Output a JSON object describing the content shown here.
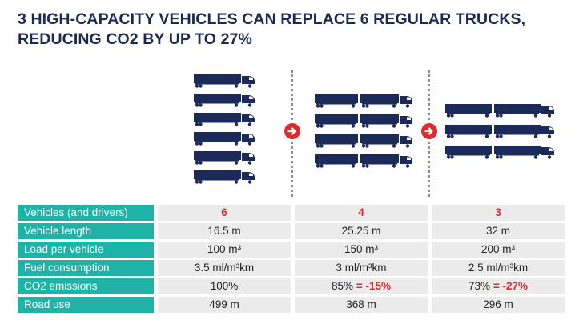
{
  "title": {
    "line1": "3 HIGH-CAPACITY VEHICLES CAN REPLACE 6 REGULAR TRUCKS,",
    "line2": "REDUCING CO2 BY UP TO 27%"
  },
  "colors": {
    "title": "#1b2a55",
    "truck_body": "#1c2a59",
    "label_background": "#1eb3a6",
    "value_background": "#ebebeb",
    "highlight_red": "#e0282f"
  },
  "illustration": {
    "groups": [
      {
        "truck_type": "regular-truck",
        "truck_count": 6
      },
      {
        "truck_type": "long-truck",
        "truck_count": 4
      },
      {
        "truck_type": "high-capacity-truck",
        "truck_count": 3
      }
    ],
    "arrow_icon": "arrow-right-icon"
  },
  "table": {
    "rows": [
      {
        "label": "Vehicles (and drivers)",
        "values": [
          {
            "main": "6",
            "delta": ""
          },
          {
            "main": "4",
            "delta": ""
          },
          {
            "main": "3",
            "delta": ""
          }
        ],
        "main_style": "red"
      },
      {
        "label": "Vehicle length",
        "values": [
          {
            "main": "16.5 m",
            "delta": ""
          },
          {
            "main": "25.25 m",
            "delta": ""
          },
          {
            "main": "32 m",
            "delta": ""
          }
        ]
      },
      {
        "label": "Load per vehicle",
        "values": [
          {
            "main": "100 m³",
            "delta": ""
          },
          {
            "main": "150 m³",
            "delta": ""
          },
          {
            "main": "200 m³",
            "delta": ""
          }
        ]
      },
      {
        "label": "Fuel consumption",
        "values": [
          {
            "main": "3.5 ml/m³km",
            "delta": ""
          },
          {
            "main": "3 ml/m³km",
            "delta": ""
          },
          {
            "main": "2.5 ml/m³km",
            "delta": ""
          }
        ]
      },
      {
        "label": "CO2 emissions",
        "values": [
          {
            "main": "100%",
            "delta": ""
          },
          {
            "main": "85%",
            "delta": "= -15%"
          },
          {
            "main": "73%",
            "delta": "= -27%"
          }
        ]
      },
      {
        "label": "Road use",
        "values": [
          {
            "main": "499 m",
            "delta": ""
          },
          {
            "main": "368 m",
            "delta": ""
          },
          {
            "main": "296 m",
            "delta": ""
          }
        ]
      }
    ]
  }
}
